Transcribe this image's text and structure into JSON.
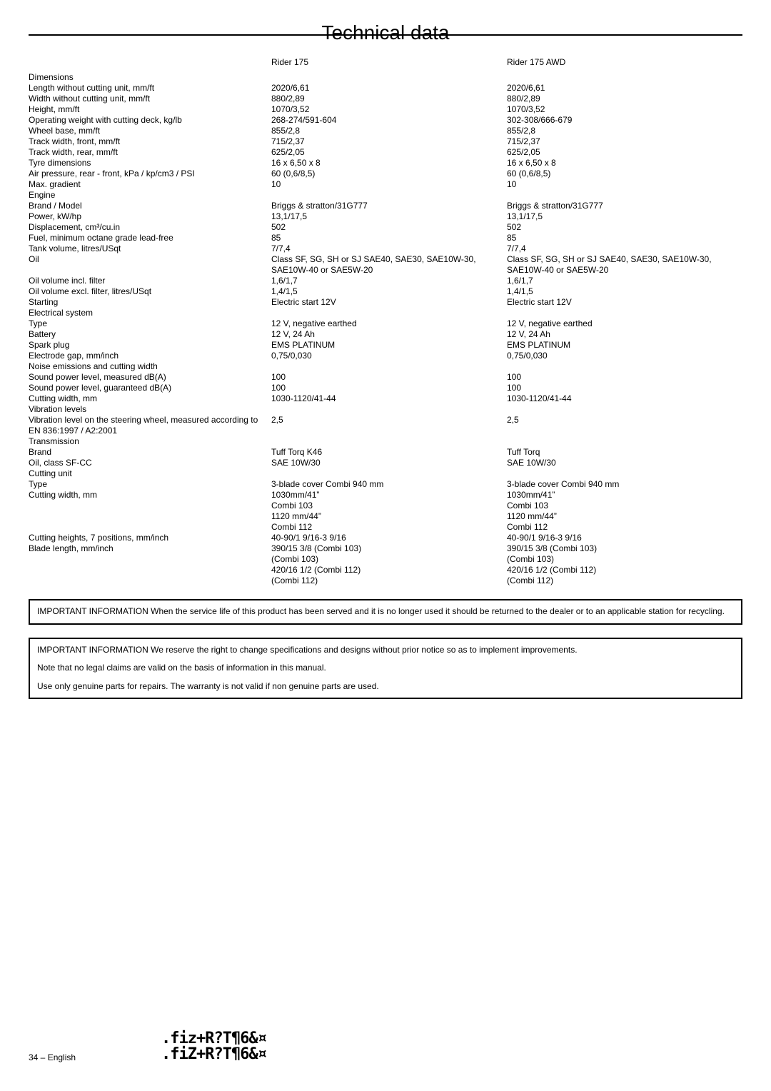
{
  "title": "Technical data",
  "columns": {
    "c1": "Rider 175",
    "c2": "Rider 175 AWD"
  },
  "sections": [
    {
      "head": "Dimensions",
      "rows": [
        {
          "l": "Length without cutting unit, mm/ft",
          "a": "2020/6,61",
          "b": "2020/6,61"
        },
        {
          "l": "Width without cutting unit, mm/ft",
          "a": "880/2,89",
          "b": "880/2,89"
        },
        {
          "l": "Height, mm/ft",
          "a": "1070/3,52",
          "b": "1070/3,52"
        },
        {
          "l": "Operating weight with cutting deck, kg/lb",
          "a": "268-274/591-604",
          "b": "302-308/666-679"
        },
        {
          "l": "Wheel base, mm/ft",
          "a": "855/2,8",
          "b": "855/2,8"
        },
        {
          "l": "Track width, front, mm/ft",
          "a": "715/2,37",
          "b": "715/2,37"
        },
        {
          "l": "Track width, rear, mm/ft",
          "a": "625/2,05",
          "b": "625/2,05"
        },
        {
          "l": "Tyre dimensions",
          "a": "16 x 6,50 x 8",
          "b": "16 x 6,50 x 8"
        },
        {
          "l": "Air pressure, rear - front, kPa / kp/cm3 / PSI",
          "a": "60 (0,6/8,5)",
          "b": "60 (0,6/8,5)"
        },
        {
          "l": "Max. gradient",
          "a": "10",
          "b": "10"
        }
      ]
    },
    {
      "head": "Engine",
      "rows": [
        {
          "l": "Brand / Model",
          "a": "Briggs & stratton/31G777",
          "b": "Briggs & stratton/31G777"
        },
        {
          "l": "Power, kW/hp",
          "a": "13,1/17,5",
          "b": "13,1/17,5"
        },
        {
          "l": "Displacement, cm³/cu.in",
          "a": "502",
          "b": "502"
        },
        {
          "l": "Fuel, minimum octane grade lead-free",
          "a": "85",
          "b": "85"
        },
        {
          "l": "Tank volume, litres/USqt",
          "a": "7/7,4",
          "b": "7/7,4"
        },
        {
          "l": "Oil",
          "a": "Class SF, SG, SH or SJ SAE40, SAE30, SAE10W-30, SAE10W-40 or SAE5W-20",
          "b": "Class SF, SG, SH or SJ SAE40, SAE30, SAE10W-30, SAE10W-40 or SAE5W-20"
        },
        {
          "l": "Oil volume incl. filter",
          "a": "1,6/1,7",
          "b": "1,6/1,7"
        },
        {
          "l": "Oil volume excl. filter, litres/USqt",
          "a": "1,4/1,5",
          "b": "1,4/1,5"
        },
        {
          "l": "Starting",
          "a": "Electric start 12V",
          "b": "Electric start 12V"
        }
      ]
    },
    {
      "head": "Electrical system",
      "rows": [
        {
          "l": "Type",
          "a": "12 V, negative earthed",
          "b": "12 V, negative earthed"
        },
        {
          "l": "Battery",
          "a": "12 V, 24 Ah",
          "b": "12 V, 24 Ah"
        },
        {
          "l": "Spark plug",
          "a": "EMS PLATINUM",
          "b": "EMS PLATINUM"
        },
        {
          "l": "Electrode gap, mm/inch",
          "a": "0,75/0,030",
          "b": "0,75/0,030"
        }
      ]
    },
    {
      "head": "Noise emissions and cutting width",
      "rows": [
        {
          "l": "Sound power level, measured dB(A)",
          "a": "100",
          "b": "100"
        },
        {
          "l": "Sound power level, guaranteed dB(A)",
          "a": "100",
          "b": "100"
        },
        {
          "l": "Cutting width, mm",
          "a": "1030-1120/41-44",
          "b": "1030-1120/41-44"
        }
      ]
    },
    {
      "head": "Vibration levels",
      "rows": [
        {
          "l": "Vibration level on the steering wheel, measured according to EN 836:1997 / A2:2001",
          "a": "2,5",
          "b": "2,5"
        }
      ]
    },
    {
      "head": "Transmission",
      "rows": [
        {
          "l": "Brand",
          "a": "Tuff Torq K46",
          "b": "Tuff Torq"
        },
        {
          "l": "Oil, class SF-CC",
          "a": "SAE 10W/30",
          "b": "SAE 10W/30"
        }
      ]
    },
    {
      "head": "Cutting unit",
      "rows": [
        {
          "l": "Type",
          "a": "3-blade cover Combi 940 mm",
          "b": "3-blade cover Combi 940 mm"
        },
        {
          "l": "Cutting width, mm",
          "a": "1030mm/41”\nCombi 103\n1120 mm/44”\nCombi 112",
          "b": "1030mm/41”\nCombi 103\n1120 mm/44”\nCombi 112"
        },
        {
          "l": "Cutting heights, 7 positions, mm/inch",
          "a": "40-90/1 9/16-3 9/16",
          "b": "40-90/1 9/16-3 9/16"
        },
        {
          "l": "Blade length, mm/inch",
          "a": "390/15 3/8 (Combi 103)\n(Combi 103)\n420/16 1/2 (Combi 112)\n(Combi 112)",
          "b": "390/15 3/8 (Combi 103)\n(Combi 103)\n420/16 1/2 (Combi 112)\n(Combi 112)"
        }
      ]
    }
  ],
  "notices": [
    "IMPORTANT INFORMATION When the service life of this product has been served and it is no longer used it should be returned to the dealer or to an applicable station for recycling.",
    "IMPORTANT INFORMATION We reserve the right to change specifications and designs without prior notice so as to implement improvements.\n\nNote that no legal claims are valid on the basis of information in this manual.\n\nUse only genuine parts for repairs. The warranty is not valid if non genuine parts are used."
  ],
  "footer": {
    "page": "34 – English",
    "barcode_lines": [
      ".fiz+R?T¶6&¤",
      ".fiZ+R?T¶6&¤"
    ]
  }
}
